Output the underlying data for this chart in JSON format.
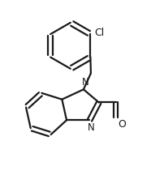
{
  "bg_color": "#ffffff",
  "line_color": "#1a1a1a",
  "line_width": 1.6,
  "figsize": [
    2.02,
    2.16
  ],
  "dpi": 100,
  "xlim": [
    -0.3,
    1.5
  ],
  "ylim": [
    -0.15,
    2.1
  ],
  "cl_label_fontsize": 9,
  "n_label_fontsize": 8.5,
  "o_label_fontsize": 9
}
